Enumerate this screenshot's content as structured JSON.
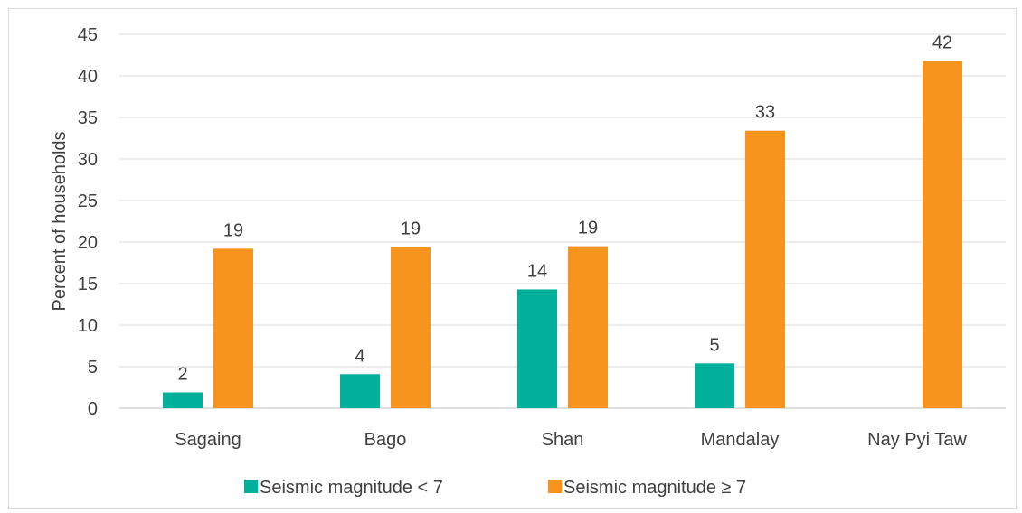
{
  "chart_data": {
    "type": "bar",
    "title": "",
    "xlabel": "",
    "ylabel": "Percent of households",
    "ylim": [
      0,
      45
    ],
    "yticks": [
      0,
      5,
      10,
      15,
      20,
      25,
      30,
      35,
      40,
      45
    ],
    "categories": [
      "Sagaing",
      "Bago",
      "Shan",
      "Mandalay",
      "Nay Pyi Taw"
    ],
    "series": [
      {
        "name": "Seismic magnitude < 7",
        "color": "#00b09b",
        "values": [
          1.9,
          4.1,
          14.3,
          5.4,
          null
        ],
        "labels": [
          "2",
          "4",
          "14",
          "5",
          ""
        ]
      },
      {
        "name": "Seismic magnitude ≥ 7",
        "color": "#f7941d",
        "values": [
          19.2,
          19.4,
          19.5,
          33.4,
          41.8
        ],
        "labels": [
          "19",
          "19",
          "19",
          "33",
          "42"
        ]
      }
    ],
    "grid": true,
    "legend_position": "bottom"
  }
}
